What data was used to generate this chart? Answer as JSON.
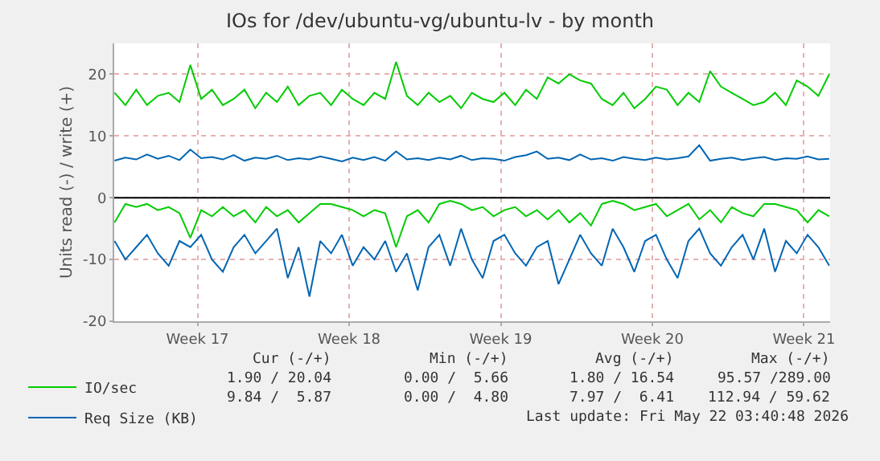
{
  "chart_data": {
    "type": "line",
    "title": "IOs for /dev/ubuntu-vg/ubuntu-lv - by month",
    "ylabel": "Units read (-) / write (+)",
    "x": [
      "2026-04-19T04:00",
      "2026-04-19T16:00",
      "2026-04-20T04:00",
      "2026-04-20T16:00",
      "2026-04-21T04:00",
      "2026-04-21T16:00",
      "2026-04-22T04:00",
      "2026-04-22T16:00",
      "2026-04-23T04:00",
      "2026-04-23T16:00",
      "2026-04-24T04:00",
      "2026-04-24T16:00",
      "2026-04-25T04:00",
      "2026-04-25T16:00",
      "2026-04-26T04:00",
      "2026-04-26T16:00",
      "2026-04-27T04:00",
      "2026-04-27T16:00",
      "2026-04-28T04:00",
      "2026-04-28T16:00",
      "2026-04-29T04:00",
      "2026-04-29T16:00",
      "2026-04-30T04:00",
      "2026-04-30T16:00",
      "2026-05-01T04:00",
      "2026-05-01T16:00",
      "2026-05-02T04:00",
      "2026-05-02T16:00",
      "2026-05-03T04:00",
      "2026-05-03T16:00",
      "2026-05-04T04:00",
      "2026-05-04T16:00",
      "2026-05-05T04:00",
      "2026-05-05T16:00",
      "2026-05-06T04:00",
      "2026-05-06T16:00",
      "2026-05-07T04:00",
      "2026-05-07T16:00",
      "2026-05-08T04:00",
      "2026-05-08T16:00",
      "2026-05-09T04:00",
      "2026-05-09T16:00",
      "2026-05-10T04:00",
      "2026-05-10T16:00",
      "2026-05-11T04:00",
      "2026-05-11T16:00",
      "2026-05-12T04:00",
      "2026-05-12T16:00",
      "2026-05-13T04:00",
      "2026-05-13T16:00",
      "2026-05-14T04:00",
      "2026-05-14T16:00",
      "2026-05-15T04:00",
      "2026-05-15T16:00",
      "2026-05-16T04:00",
      "2026-05-16T16:00",
      "2026-05-17T04:00",
      "2026-05-17T16:00",
      "2026-05-18T04:00",
      "2026-05-18T16:00",
      "2026-05-19T04:00",
      "2026-05-19T16:00",
      "2026-05-20T04:00",
      "2026-05-20T16:00",
      "2026-05-21T04:00",
      "2026-05-21T16:00",
      "2026-05-22T04:00"
    ],
    "xlim": [
      "2026-04-19T03:40",
      "2026-05-22T05:00"
    ],
    "xticks": [
      {
        "value": "2026-04-23",
        "label": "Week 17"
      },
      {
        "value": "2026-04-30",
        "label": "Week 18"
      },
      {
        "value": "2026-05-07",
        "label": "Week 19"
      },
      {
        "value": "2026-05-14",
        "label": "Week 20"
      },
      {
        "value": "2026-05-21",
        "label": "Week 21"
      }
    ],
    "ylim": [
      -20,
      25
    ],
    "yticks": [
      -20,
      -10,
      0,
      10,
      20
    ],
    "series": [
      {
        "name": "IO/sec",
        "color": "#00cc00",
        "values": [
          17,
          15,
          17.5,
          15,
          16.5,
          17,
          15.5,
          21.5,
          16,
          17.5,
          15,
          16,
          17.5,
          14.5,
          17,
          15.5,
          18,
          15,
          16.5,
          17,
          15,
          17.5,
          16,
          15,
          17,
          16,
          22,
          16.5,
          15,
          17,
          15.5,
          16.5,
          14.5,
          17,
          16,
          15.5,
          17,
          15,
          17.5,
          16,
          19.5,
          18.5,
          20,
          19,
          18.5,
          16,
          15,
          17,
          14.5,
          16,
          18,
          17.5,
          15,
          17,
          15.5,
          20.5,
          18,
          17,
          16,
          15,
          15.5,
          17,
          15,
          19,
          18,
          16.5,
          20
        ]
      },
      {
        "color": "#00cc00",
        "values": [
          -4,
          -1,
          -1.5,
          -1,
          -2,
          -1.5,
          -2.5,
          -6.5,
          -2,
          -3,
          -1.5,
          -3,
          -2,
          -4,
          -1.5,
          -3,
          -2,
          -4,
          -2.5,
          -1,
          -1,
          -1.5,
          -2,
          -3,
          -2,
          -2.5,
          -8,
          -3,
          -2,
          -4,
          -1,
          -0.5,
          -1,
          -2,
          -1.5,
          -3,
          -2,
          -1.5,
          -3,
          -2,
          -3.5,
          -2,
          -4,
          -2.5,
          -4.5,
          -1,
          -0.5,
          -1,
          -2,
          -1.5,
          -1,
          -3,
          -2,
          -1,
          -3.5,
          -2,
          -4,
          -1.5,
          -2.5,
          -3,
          -1,
          -1,
          -1.5,
          -2,
          -4,
          -2,
          -3
        ]
      },
      {
        "name": "Req Size (KB)",
        "color": "#0066b3",
        "values": [
          6,
          6.5,
          6.2,
          7,
          6.3,
          6.8,
          6.1,
          7.8,
          6.4,
          6.6,
          6.2,
          6.9,
          6,
          6.5,
          6.3,
          6.8,
          6.1,
          6.4,
          6.2,
          6.7,
          6.3,
          5.9,
          6.5,
          6.1,
          6.6,
          6,
          7.5,
          6.2,
          6.4,
          6.1,
          6.5,
          6.2,
          6.8,
          6.1,
          6.4,
          6.3,
          6,
          6.6,
          6.9,
          7.5,
          6.3,
          6.5,
          6.1,
          7,
          6.2,
          6.4,
          6,
          6.6,
          6.3,
          6.1,
          6.5,
          6.2,
          6.4,
          6.7,
          8.5,
          6,
          6.3,
          6.5,
          6.1,
          6.4,
          6.6,
          6.1,
          6.4,
          6.3,
          6.7,
          6.2,
          6.3
        ]
      },
      {
        "color": "#0066b3",
        "values": [
          -7,
          -10,
          -8,
          -6,
          -9,
          -11,
          -7,
          -8,
          -6,
          -10,
          -12,
          -8,
          -6,
          -9,
          -7,
          -5,
          -13,
          -8,
          -16,
          -7,
          -9,
          -6,
          -11,
          -8,
          -10,
          -7,
          -12,
          -9,
          -15,
          -8,
          -6,
          -11,
          -5,
          -10,
          -13,
          -7,
          -6,
          -9,
          -11,
          -8,
          -7,
          -14,
          -10,
          -6,
          -9,
          -11,
          -5,
          -8,
          -12,
          -7,
          -6,
          -10,
          -13,
          -7,
          -5,
          -9,
          -11,
          -8,
          -6,
          -10,
          -5,
          -12,
          -7,
          -9,
          -6,
          -8,
          -11
        ]
      }
    ],
    "ref_lines": [
      {
        "axis": "y",
        "value": 0,
        "color": "#000000"
      }
    ],
    "grid": true,
    "legend": "bottom left",
    "marker": "none",
    "line_style": "solid",
    "annotations": [
      "Cur (-/+)",
      "Min (-/+)",
      "Avg (-/+)",
      "Max (-/+)",
      "1.90 / 20.04",
      "0.00 /  5.66",
      "1.80 / 16.54",
      "95.57 /289.00",
      "9.84 /  5.87",
      "0.00 /  4.80",
      "7.97 /  6.41",
      "112.94 / 59.62",
      "Last update: Fri May 22 03:40:48 2026"
    ]
  }
}
